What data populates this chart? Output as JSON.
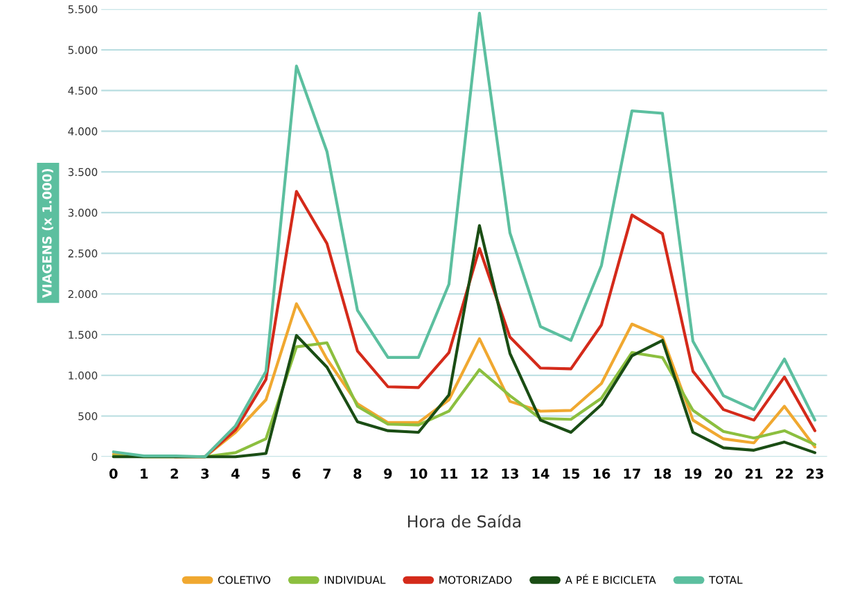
{
  "chart_data": {
    "type": "line",
    "xlabel": "Hora de Saída",
    "ylabel": "VIAGENS (x 1.000)",
    "categories": [
      "0",
      "1",
      "2",
      "3",
      "4",
      "5",
      "6",
      "7",
      "8",
      "9",
      "10",
      "11",
      "12",
      "13",
      "14",
      "15",
      "16",
      "17",
      "18",
      "19",
      "20",
      "21",
      "22",
      "23"
    ],
    "series": [
      {
        "name": "TOTAL",
        "color": "#5cbf9f",
        "values": [
          60,
          10,
          10,
          0,
          380,
          1050,
          4800,
          3750,
          1800,
          1220,
          1220,
          2120,
          5450,
          2750,
          1600,
          1430,
          2350,
          4250,
          4220,
          1420,
          750,
          580,
          1200,
          450
        ]
      },
      {
        "name": "MOTORIZADO",
        "color": "#d42a1a",
        "values": [
          null,
          null,
          0,
          0,
          330,
          950,
          3260,
          2620,
          1300,
          860,
          850,
          1280,
          2560,
          1470,
          1090,
          1080,
          1620,
          2970,
          2740,
          1050,
          580,
          450,
          980,
          320
        ]
      },
      {
        "name": "COLETIVO",
        "color": "#f0a830",
        "values": [
          30,
          0,
          0,
          0,
          300,
          700,
          1880,
          1200,
          650,
          420,
          420,
          700,
          1450,
          680,
          560,
          570,
          900,
          1630,
          1470,
          450,
          220,
          170,
          620,
          120
        ]
      },
      {
        "name": "INDIVIDUAL",
        "color": "#8cbf3f",
        "values": [
          10,
          0,
          0,
          0,
          50,
          220,
          1350,
          1400,
          620,
          400,
          390,
          560,
          1070,
          750,
          470,
          460,
          720,
          1280,
          1220,
          570,
          310,
          230,
          320,
          150
        ]
      },
      {
        "name": "A PÉ E BICICLETA",
        "color": "#1a4d14",
        "values": [
          0,
          0,
          0,
          0,
          0,
          40,
          1490,
          1100,
          430,
          320,
          300,
          760,
          2840,
          1270,
          450,
          300,
          640,
          1240,
          1430,
          300,
          110,
          80,
          180,
          50
        ]
      }
    ],
    "ylim": [
      0,
      5500
    ],
    "yticks": [
      {
        "value": 0,
        "label": "0"
      },
      {
        "value": 500,
        "label": "500"
      },
      {
        "value": 1000,
        "label": "1.000"
      },
      {
        "value": 1500,
        "label": "1.500"
      },
      {
        "value": 2000,
        "label": "2.000"
      },
      {
        "value": 2500,
        "label": "2.500"
      },
      {
        "value": 3000,
        "label": "3.000"
      },
      {
        "value": 3500,
        "label": "3.500"
      },
      {
        "value": 4000,
        "label": "4.000"
      },
      {
        "value": 4500,
        "label": "4.500"
      },
      {
        "value": 5000,
        "label": "5.000"
      },
      {
        "value": 5500,
        "label": "5.500"
      }
    ],
    "grid": "y",
    "legend": "bottom",
    "marker": "none",
    "line_style": "solid"
  }
}
